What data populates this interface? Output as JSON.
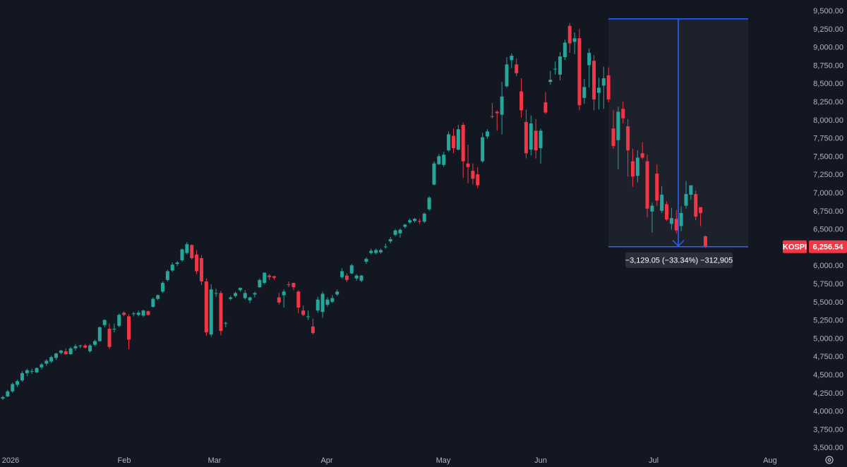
{
  "chart_data": {
    "type": "candlestick",
    "symbol": "KOSPI",
    "last_price_label": "6,256.54",
    "x_ticks": [
      "2026",
      "Feb",
      "Mar",
      "Apr",
      "May",
      "Jun",
      "Jul",
      "Aug"
    ],
    "y_ticks": [
      "3,500.00",
      "3,750.00",
      "4,000.00",
      "4,250.00",
      "4,500.00",
      "4,750.00",
      "5,000.00",
      "5,250.00",
      "5,500.00",
      "5,750.00",
      "6,000.00",
      "6,250.00",
      "6,500.00",
      "6,750.00",
      "7,000.00",
      "7,250.00",
      "7,500.00",
      "7,750.00",
      "8,000.00",
      "8,250.00",
      "8,500.00",
      "8,750.00",
      "9,000.00",
      "9,250.00",
      "9,500.00"
    ],
    "ylim": [
      3500,
      9500
    ],
    "measurement": {
      "label": "−3,129.05 (−33.34%) −312,905",
      "start_price": 9385.59,
      "end_price": 6256.54
    },
    "colors": {
      "up": "#26a69a",
      "down": "#f23645",
      "background": "#131722",
      "axis_text": "#b2b5be",
      "measure": "#2962ff",
      "measure_fill": "#1e222d",
      "badge": "#f23645"
    },
    "candles": [
      {
        "o": 4170,
        "h": 4210,
        "l": 4150,
        "c": 4190
      },
      {
        "o": 4200,
        "h": 4290,
        "l": 4190,
        "c": 4270
      },
      {
        "o": 4270,
        "h": 4390,
        "l": 4250,
        "c": 4370
      },
      {
        "o": 4360,
        "h": 4430,
        "l": 4330,
        "c": 4410
      },
      {
        "o": 4420,
        "h": 4550,
        "l": 4400,
        "c": 4520
      },
      {
        "o": 4520,
        "h": 4580,
        "l": 4480,
        "c": 4560
      },
      {
        "o": 4540,
        "h": 4580,
        "l": 4510,
        "c": 4550
      },
      {
        "o": 4530,
        "h": 4600,
        "l": 4520,
        "c": 4590
      },
      {
        "o": 4600,
        "h": 4660,
        "l": 4570,
        "c": 4640
      },
      {
        "o": 4650,
        "h": 4710,
        "l": 4620,
        "c": 4690
      },
      {
        "o": 4680,
        "h": 4760,
        "l": 4660,
        "c": 4740
      },
      {
        "o": 4730,
        "h": 4800,
        "l": 4700,
        "c": 4790
      },
      {
        "o": 4800,
        "h": 4840,
        "l": 4780,
        "c": 4830
      },
      {
        "o": 4820,
        "h": 4860,
        "l": 4770,
        "c": 4780
      },
      {
        "o": 4780,
        "h": 4880,
        "l": 4770,
        "c": 4860
      },
      {
        "o": 4860,
        "h": 4920,
        "l": 4830,
        "c": 4890
      },
      {
        "o": 4890,
        "h": 4910,
        "l": 4860,
        "c": 4900
      },
      {
        "o": 4900,
        "h": 4920,
        "l": 4860,
        "c": 4870
      },
      {
        "o": 4820,
        "h": 4920,
        "l": 4800,
        "c": 4900
      },
      {
        "o": 4910,
        "h": 4980,
        "l": 4890,
        "c": 4960
      },
      {
        "o": 4960,
        "h": 5160,
        "l": 4950,
        "c": 5150
      },
      {
        "o": 5180,
        "h": 5260,
        "l": 5150,
        "c": 5250
      },
      {
        "o": 5130,
        "h": 5200,
        "l": 4850,
        "c": 4880
      },
      {
        "o": 5120,
        "h": 5200,
        "l": 5080,
        "c": 5130
      },
      {
        "o": 5170,
        "h": 5340,
        "l": 5150,
        "c": 5320
      },
      {
        "o": 5350,
        "h": 5370,
        "l": 5300,
        "c": 5320
      },
      {
        "o": 5300,
        "h": 5330,
        "l": 4850,
        "c": 4980
      },
      {
        "o": 5330,
        "h": 5360,
        "l": 5300,
        "c": 5340
      },
      {
        "o": 5320,
        "h": 5380,
        "l": 5300,
        "c": 5350
      },
      {
        "o": 5310,
        "h": 5390,
        "l": 5290,
        "c": 5380
      },
      {
        "o": 5370,
        "h": 5380,
        "l": 5310,
        "c": 5320
      },
      {
        "o": 5430,
        "h": 5560,
        "l": 5420,
        "c": 5540
      },
      {
        "o": 5540,
        "h": 5600,
        "l": 5520,
        "c": 5590
      },
      {
        "o": 5640,
        "h": 5780,
        "l": 5620,
        "c": 5760
      },
      {
        "o": 5800,
        "h": 5940,
        "l": 5780,
        "c": 5920
      },
      {
        "o": 5930,
        "h": 6040,
        "l": 5910,
        "c": 6010
      },
      {
        "o": 6020,
        "h": 6060,
        "l": 5990,
        "c": 6040
      },
      {
        "o": 6070,
        "h": 6230,
        "l": 6050,
        "c": 6220
      },
      {
        "o": 6170,
        "h": 6320,
        "l": 6150,
        "c": 6290
      },
      {
        "o": 6280,
        "h": 6290,
        "l": 6080,
        "c": 6100
      },
      {
        "o": 6150,
        "h": 6210,
        "l": 5880,
        "c": 5920
      },
      {
        "o": 6100,
        "h": 6140,
        "l": 5730,
        "c": 5780
      },
      {
        "o": 5780,
        "h": 5820,
        "l": 5030,
        "c": 5080
      },
      {
        "o": 5050,
        "h": 5740,
        "l": 5020,
        "c": 5670
      },
      {
        "o": 5620,
        "h": 5680,
        "l": 5570,
        "c": 5620
      },
      {
        "o": 5620,
        "h": 5650,
        "l": 5040,
        "c": 5100
      },
      {
        "o": 5200,
        "h": 5230,
        "l": 5150,
        "c": 5210
      },
      {
        "o": 5540,
        "h": 5580,
        "l": 5520,
        "c": 5560
      },
      {
        "o": 5580,
        "h": 5640,
        "l": 5560,
        "c": 5620
      },
      {
        "o": 5660,
        "h": 5700,
        "l": 5640,
        "c": 5690
      },
      {
        "o": 5550,
        "h": 5660,
        "l": 5530,
        "c": 5620
      },
      {
        "o": 5520,
        "h": 5570,
        "l": 5480,
        "c": 5560
      },
      {
        "o": 5600,
        "h": 5640,
        "l": 5560,
        "c": 5620
      },
      {
        "o": 5700,
        "h": 5820,
        "l": 5690,
        "c": 5800
      },
      {
        "o": 5760,
        "h": 5900,
        "l": 5740,
        "c": 5900
      },
      {
        "o": 5860,
        "h": 5880,
        "l": 5800,
        "c": 5840
      },
      {
        "o": 5850,
        "h": 5860,
        "l": 5800,
        "c": 5830
      },
      {
        "o": 5560,
        "h": 5620,
        "l": 5460,
        "c": 5490
      },
      {
        "o": 5590,
        "h": 5670,
        "l": 5420,
        "c": 5640
      },
      {
        "o": 5740,
        "h": 5780,
        "l": 5700,
        "c": 5730
      },
      {
        "o": 5760,
        "h": 5760,
        "l": 5660,
        "c": 5700
      },
      {
        "o": 5640,
        "h": 5660,
        "l": 5340,
        "c": 5420
      },
      {
        "o": 5380,
        "h": 5450,
        "l": 5300,
        "c": 5320
      },
      {
        "o": 5300,
        "h": 5380,
        "l": 5250,
        "c": 5300
      },
      {
        "o": 5160,
        "h": 5270,
        "l": 5050,
        "c": 5070
      },
      {
        "o": 5380,
        "h": 5570,
        "l": 5350,
        "c": 5530
      },
      {
        "o": 5360,
        "h": 5640,
        "l": 5280,
        "c": 5610
      },
      {
        "o": 5460,
        "h": 5560,
        "l": 5430,
        "c": 5530
      },
      {
        "o": 5500,
        "h": 5590,
        "l": 5480,
        "c": 5550
      },
      {
        "o": 5600,
        "h": 5670,
        "l": 5580,
        "c": 5640
      },
      {
        "o": 5840,
        "h": 5960,
        "l": 5820,
        "c": 5920
      },
      {
        "o": 5860,
        "h": 5890,
        "l": 5770,
        "c": 5800
      },
      {
        "o": 5890,
        "h": 6020,
        "l": 5880,
        "c": 6000
      },
      {
        "o": 5820,
        "h": 5880,
        "l": 5790,
        "c": 5860
      },
      {
        "o": 5790,
        "h": 5870,
        "l": 5770,
        "c": 5860
      },
      {
        "o": 6050,
        "h": 6110,
        "l": 6020,
        "c": 6090
      },
      {
        "o": 6170,
        "h": 6230,
        "l": 6150,
        "c": 6200
      },
      {
        "o": 6170,
        "h": 6230,
        "l": 6150,
        "c": 6210
      },
      {
        "o": 6180,
        "h": 6230,
        "l": 6160,
        "c": 6210
      },
      {
        "o": 6250,
        "h": 6300,
        "l": 6230,
        "c": 6260
      },
      {
        "o": 6330,
        "h": 6390,
        "l": 6300,
        "c": 6360
      },
      {
        "o": 6420,
        "h": 6500,
        "l": 6400,
        "c": 6480
      },
      {
        "o": 6440,
        "h": 6510,
        "l": 6380,
        "c": 6490
      },
      {
        "o": 6530,
        "h": 6570,
        "l": 6510,
        "c": 6560
      },
      {
        "o": 6590,
        "h": 6640,
        "l": 6570,
        "c": 6620
      },
      {
        "o": 6610,
        "h": 6650,
        "l": 6590,
        "c": 6640
      },
      {
        "o": 6610,
        "h": 6640,
        "l": 6570,
        "c": 6600
      },
      {
        "o": 6600,
        "h": 6730,
        "l": 6580,
        "c": 6710
      },
      {
        "o": 6770,
        "h": 6950,
        "l": 6750,
        "c": 6930
      },
      {
        "o": 7110,
        "h": 7430,
        "l": 7100,
        "c": 7400
      },
      {
        "o": 7390,
        "h": 7530,
        "l": 7380,
        "c": 7500
      },
      {
        "o": 7380,
        "h": 7560,
        "l": 7350,
        "c": 7520
      },
      {
        "o": 7580,
        "h": 7840,
        "l": 7560,
        "c": 7800
      },
      {
        "o": 7780,
        "h": 7880,
        "l": 7540,
        "c": 7610
      },
      {
        "o": 7590,
        "h": 7930,
        "l": 7580,
        "c": 7870
      },
      {
        "o": 7930,
        "h": 7960,
        "l": 7200,
        "c": 7430
      },
      {
        "o": 7400,
        "h": 7660,
        "l": 7130,
        "c": 7350
      },
      {
        "o": 7300,
        "h": 7400,
        "l": 7110,
        "c": 7190
      },
      {
        "o": 7250,
        "h": 7350,
        "l": 7060,
        "c": 7100
      },
      {
        "o": 7430,
        "h": 7820,
        "l": 7410,
        "c": 7760
      },
      {
        "o": 7770,
        "h": 7870,
        "l": 7740,
        "c": 7840
      },
      {
        "o": 8050,
        "h": 8230,
        "l": 8020,
        "c": 8040
      },
      {
        "o": 8110,
        "h": 8130,
        "l": 7850,
        "c": 8090
      },
      {
        "o": 8070,
        "h": 8520,
        "l": 7800,
        "c": 8320
      },
      {
        "o": 8460,
        "h": 8860,
        "l": 8440,
        "c": 8760
      },
      {
        "o": 8820,
        "h": 8910,
        "l": 8710,
        "c": 8880
      },
      {
        "o": 8760,
        "h": 8840,
        "l": 8600,
        "c": 8640
      },
      {
        "o": 8390,
        "h": 8570,
        "l": 8030,
        "c": 8130
      },
      {
        "o": 7970,
        "h": 8140,
        "l": 7470,
        "c": 7540
      },
      {
        "o": 7590,
        "h": 8060,
        "l": 7510,
        "c": 7950
      },
      {
        "o": 7850,
        "h": 8010,
        "l": 7470,
        "c": 7580
      },
      {
        "o": 7610,
        "h": 7880,
        "l": 7400,
        "c": 7850
      },
      {
        "o": 8240,
        "h": 8380,
        "l": 8080,
        "c": 8100
      },
      {
        "o": 8520,
        "h": 8670,
        "l": 8480,
        "c": 8550
      },
      {
        "o": 8690,
        "h": 8800,
        "l": 8620,
        "c": 8700
      },
      {
        "o": 8620,
        "h": 8930,
        "l": 8540,
        "c": 8870
      },
      {
        "o": 8860,
        "h": 9100,
        "l": 8820,
        "c": 9060
      },
      {
        "o": 9290,
        "h": 9330,
        "l": 8920,
        "c": 9050
      },
      {
        "o": 9070,
        "h": 9200,
        "l": 8900,
        "c": 9120
      },
      {
        "o": 9120,
        "h": 9250,
        "l": 8130,
        "c": 8200
      },
      {
        "o": 8300,
        "h": 8560,
        "l": 8220,
        "c": 8450
      },
      {
        "o": 8750,
        "h": 8980,
        "l": 8440,
        "c": 8920
      },
      {
        "o": 8810,
        "h": 8890,
        "l": 8130,
        "c": 8280
      },
      {
        "o": 8370,
        "h": 8580,
        "l": 8140,
        "c": 8440
      },
      {
        "o": 8470,
        "h": 8730,
        "l": 8150,
        "c": 8570
      },
      {
        "o": 8610,
        "h": 8720,
        "l": 8240,
        "c": 8280
      },
      {
        "o": 7880,
        "h": 8130,
        "l": 7600,
        "c": 7640
      },
      {
        "o": 7720,
        "h": 8180,
        "l": 7320,
        "c": 8110
      },
      {
        "o": 8150,
        "h": 8250,
        "l": 7950,
        "c": 8020
      },
      {
        "o": 7910,
        "h": 8010,
        "l": 7220,
        "c": 7580
      },
      {
        "o": 7430,
        "h": 7600,
        "l": 7080,
        "c": 7220
      },
      {
        "o": 7230,
        "h": 7580,
        "l": 7140,
        "c": 7480
      },
      {
        "o": 7540,
        "h": 7690,
        "l": 7460,
        "c": 7480
      },
      {
        "o": 7430,
        "h": 7520,
        "l": 6660,
        "c": 6780
      },
      {
        "o": 6740,
        "h": 6860,
        "l": 6450,
        "c": 6820
      },
      {
        "o": 7260,
        "h": 7390,
        "l": 6820,
        "c": 6890
      },
      {
        "o": 6750,
        "h": 7090,
        "l": 6720,
        "c": 6970
      },
      {
        "o": 6840,
        "h": 6880,
        "l": 6610,
        "c": 6630
      },
      {
        "o": 6570,
        "h": 6790,
        "l": 6490,
        "c": 6650
      },
      {
        "o": 6640,
        "h": 6760,
        "l": 6440,
        "c": 6480
      },
      {
        "o": 6540,
        "h": 6810,
        "l": 6470,
        "c": 6720
      },
      {
        "o": 6820,
        "h": 7160,
        "l": 6780,
        "c": 6980
      },
      {
        "o": 6970,
        "h": 7080,
        "l": 6900,
        "c": 7100
      },
      {
        "o": 6980,
        "h": 7030,
        "l": 6620,
        "c": 6670
      },
      {
        "o": 6800,
        "h": 6800,
        "l": 6540,
        "c": 6720
      },
      {
        "o": 6400,
        "h": 6410,
        "l": 6240,
        "c": 6256.54
      }
    ]
  }
}
